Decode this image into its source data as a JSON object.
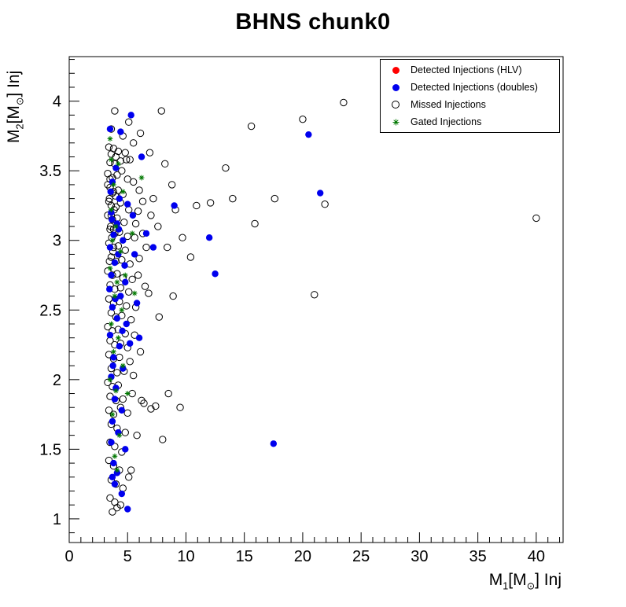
{
  "chart_data": {
    "type": "scatter",
    "title": "BHNS chunk0",
    "xlabel_text": "M1[M⊙] Inj",
    "ylabel_text": "M2[M⊙] Inj",
    "xlabel_segments": [
      {
        "t": "M"
      },
      {
        "t": "1",
        "sub": true
      },
      {
        "t": "[M"
      },
      {
        "t": "⊙",
        "sub": true
      },
      {
        "t": "] Inj"
      }
    ],
    "ylabel_segments": [
      {
        "t": "M"
      },
      {
        "t": "2",
        "sub": true
      },
      {
        "t": "[M"
      },
      {
        "t": "⊙",
        "sub": true
      },
      {
        "t": "] Inj"
      }
    ],
    "xlim": [
      0,
      42.3
    ],
    "ylim": [
      0.83,
      4.32
    ],
    "xticks": [
      0,
      5,
      10,
      15,
      20,
      25,
      30,
      35,
      40
    ],
    "yticks": [
      1,
      1.5,
      2,
      2.5,
      3,
      3.5,
      4
    ],
    "x_minor_step": 1,
    "y_minor_step": 0.1,
    "grid": false,
    "legend_position": "top-right",
    "series": [
      {
        "name": "Detected Injections (HLV)",
        "marker": "filled-circle",
        "color": "#ff0000",
        "points": []
      },
      {
        "name": "Detected Injections (doubles)",
        "marker": "filled-circle",
        "color": "#0000ee",
        "points": [
          [
            3.5,
            3.8
          ],
          [
            4.4,
            3.78
          ],
          [
            5.3,
            3.9
          ],
          [
            6.2,
            3.6
          ],
          [
            4.0,
            3.52
          ],
          [
            3.7,
            3.42
          ],
          [
            4.3,
            3.3
          ],
          [
            5.0,
            3.26
          ],
          [
            3.6,
            3.2
          ],
          [
            4.1,
            3.12
          ],
          [
            3.8,
            3.04
          ],
          [
            4.6,
            3.0
          ],
          [
            3.5,
            2.95
          ],
          [
            4.2,
            2.9
          ],
          [
            3.9,
            2.84
          ],
          [
            3.6,
            2.75
          ],
          [
            4.8,
            2.7
          ],
          [
            5.6,
            2.9
          ],
          [
            6.6,
            3.05
          ],
          [
            4.4,
            2.6
          ],
          [
            3.7,
            2.52
          ],
          [
            4.1,
            2.44
          ],
          [
            4.9,
            2.4
          ],
          [
            3.5,
            2.32
          ],
          [
            4.3,
            2.24
          ],
          [
            3.8,
            2.16
          ],
          [
            4.6,
            2.08
          ],
          [
            3.6,
            2.02
          ],
          [
            4.0,
            1.94
          ],
          [
            5.2,
            2.26
          ],
          [
            3.9,
            1.86
          ],
          [
            4.5,
            1.78
          ],
          [
            3.7,
            1.7
          ],
          [
            4.2,
            1.62
          ],
          [
            3.6,
            1.55
          ],
          [
            4.8,
            1.5
          ],
          [
            3.8,
            1.4
          ],
          [
            4.1,
            1.33
          ],
          [
            3.9,
            1.25
          ],
          [
            4.5,
            1.18
          ],
          [
            5.0,
            1.07
          ],
          [
            3.7,
            1.3
          ],
          [
            5.8,
            2.55
          ],
          [
            6.0,
            2.3
          ],
          [
            7.2,
            2.95
          ],
          [
            12.0,
            3.02
          ],
          [
            12.5,
            2.76
          ],
          [
            20.5,
            3.76
          ],
          [
            21.5,
            3.34
          ],
          [
            17.5,
            1.54
          ],
          [
            9.0,
            3.25
          ],
          [
            3.55,
            3.35
          ],
          [
            3.65,
            3.15
          ],
          [
            4.25,
            3.08
          ],
          [
            4.75,
            2.82
          ],
          [
            5.45,
            3.18
          ],
          [
            3.45,
            2.65
          ],
          [
            3.95,
            2.58
          ],
          [
            4.55,
            2.35
          ],
          [
            3.75,
            2.1
          ]
        ]
      },
      {
        "name": "Missed Injections",
        "marker": "open-circle",
        "color": "#000000",
        "points": [
          [
            3.4,
            3.67
          ],
          [
            3.6,
            3.62
          ],
          [
            3.8,
            3.66
          ],
          [
            4.0,
            3.6
          ],
          [
            4.2,
            3.64
          ],
          [
            3.5,
            3.56
          ],
          [
            3.9,
            3.55
          ],
          [
            4.4,
            3.57
          ],
          [
            4.8,
            3.63
          ],
          [
            5.2,
            3.58
          ],
          [
            3.3,
            3.48
          ],
          [
            3.7,
            3.45
          ],
          [
            4.1,
            3.47
          ],
          [
            4.5,
            3.5
          ],
          [
            5.0,
            3.44
          ],
          [
            5.5,
            3.42
          ],
          [
            3.5,
            3.38
          ],
          [
            3.8,
            3.35
          ],
          [
            4.2,
            3.36
          ],
          [
            4.6,
            3.33
          ],
          [
            3.4,
            3.28
          ],
          [
            3.6,
            3.25
          ],
          [
            4.0,
            3.24
          ],
          [
            4.4,
            3.27
          ],
          [
            5.1,
            3.22
          ],
          [
            5.9,
            3.21
          ],
          [
            3.3,
            3.18
          ],
          [
            3.7,
            3.15
          ],
          [
            4.1,
            3.16
          ],
          [
            4.7,
            3.13
          ],
          [
            3.5,
            3.08
          ],
          [
            3.9,
            3.05
          ],
          [
            4.3,
            3.06
          ],
          [
            5.0,
            3.03
          ],
          [
            5.6,
            3.02
          ],
          [
            6.3,
            3.05
          ],
          [
            3.4,
            2.98
          ],
          [
            3.8,
            2.95
          ],
          [
            4.2,
            2.96
          ],
          [
            4.8,
            2.93
          ],
          [
            3.6,
            2.88
          ],
          [
            4.0,
            2.85
          ],
          [
            4.5,
            2.86
          ],
          [
            5.2,
            2.83
          ],
          [
            6.0,
            2.87
          ],
          [
            3.3,
            2.78
          ],
          [
            3.7,
            2.75
          ],
          [
            4.1,
            2.76
          ],
          [
            4.6,
            2.73
          ],
          [
            5.4,
            2.72
          ],
          [
            3.5,
            2.68
          ],
          [
            3.9,
            2.65
          ],
          [
            4.4,
            2.66
          ],
          [
            5.1,
            2.63
          ],
          [
            6.5,
            2.67
          ],
          [
            3.4,
            2.58
          ],
          [
            3.8,
            2.55
          ],
          [
            4.3,
            2.56
          ],
          [
            4.9,
            2.53
          ],
          [
            5.7,
            2.52
          ],
          [
            3.6,
            2.48
          ],
          [
            4.0,
            2.45
          ],
          [
            4.5,
            2.46
          ],
          [
            5.3,
            2.43
          ],
          [
            3.3,
            2.38
          ],
          [
            3.7,
            2.35
          ],
          [
            4.2,
            2.36
          ],
          [
            4.8,
            2.33
          ],
          [
            5.6,
            2.32
          ],
          [
            6.8,
            2.62
          ],
          [
            3.5,
            2.28
          ],
          [
            3.9,
            2.25
          ],
          [
            4.4,
            2.26
          ],
          [
            5.0,
            2.23
          ],
          [
            3.4,
            2.18
          ],
          [
            3.8,
            2.15
          ],
          [
            4.3,
            2.16
          ],
          [
            5.2,
            2.13
          ],
          [
            3.6,
            2.08
          ],
          [
            4.1,
            2.05
          ],
          [
            4.7,
            2.06
          ],
          [
            5.5,
            2.03
          ],
          [
            3.3,
            1.98
          ],
          [
            3.7,
            1.95
          ],
          [
            4.2,
            1.96
          ],
          [
            3.5,
            1.88
          ],
          [
            4.0,
            1.85
          ],
          [
            4.6,
            1.86
          ],
          [
            5.4,
            1.9
          ],
          [
            6.2,
            1.85
          ],
          [
            3.4,
            1.78
          ],
          [
            3.8,
            1.75
          ],
          [
            4.4,
            1.8
          ],
          [
            5.0,
            1.76
          ],
          [
            7.0,
            1.79
          ],
          [
            3.6,
            1.68
          ],
          [
            4.1,
            1.65
          ],
          [
            4.8,
            1.62
          ],
          [
            8.0,
            1.57
          ],
          [
            3.5,
            1.55
          ],
          [
            3.9,
            1.52
          ],
          [
            4.5,
            1.48
          ],
          [
            3.4,
            1.42
          ],
          [
            3.8,
            1.38
          ],
          [
            4.3,
            1.35
          ],
          [
            5.1,
            1.3
          ],
          [
            3.6,
            1.28
          ],
          [
            4.0,
            1.25
          ],
          [
            4.6,
            1.22
          ],
          [
            3.5,
            1.15
          ],
          [
            3.9,
            1.12
          ],
          [
            4.4,
            1.1
          ],
          [
            3.7,
            1.05
          ],
          [
            4.1,
            1.08
          ],
          [
            5.3,
            1.35
          ],
          [
            5.8,
            1.6
          ],
          [
            6.4,
            1.83
          ],
          [
            7.4,
            1.81
          ],
          [
            3.3,
            3.4
          ],
          [
            3.45,
            3.3
          ],
          [
            3.9,
            3.93
          ],
          [
            5.1,
            3.85
          ],
          [
            5.5,
            3.7
          ],
          [
            6.1,
            3.77
          ],
          [
            7.9,
            3.93
          ],
          [
            4.6,
            3.75
          ],
          [
            3.6,
            3.8
          ],
          [
            4.9,
            3.58
          ],
          [
            6.9,
            3.63
          ],
          [
            8.2,
            3.55
          ],
          [
            6.0,
            3.36
          ],
          [
            7.2,
            3.3
          ],
          [
            8.8,
            3.4
          ],
          [
            9.1,
            3.22
          ],
          [
            7.6,
            3.1
          ],
          [
            8.4,
            2.95
          ],
          [
            9.7,
            3.02
          ],
          [
            10.4,
            2.88
          ],
          [
            6.6,
            2.95
          ],
          [
            7.0,
            3.18
          ],
          [
            10.9,
            3.25
          ],
          [
            13.4,
            3.52
          ],
          [
            15.6,
            3.82
          ],
          [
            20.0,
            3.87
          ],
          [
            23.5,
            3.99
          ],
          [
            17.6,
            3.3
          ],
          [
            21.9,
            3.26
          ],
          [
            15.9,
            3.12
          ],
          [
            40.0,
            3.16
          ],
          [
            21.0,
            2.61
          ],
          [
            12.1,
            3.27
          ],
          [
            14.0,
            3.3
          ],
          [
            8.9,
            2.6
          ],
          [
            9.5,
            1.8
          ],
          [
            8.5,
            1.9
          ],
          [
            7.7,
            2.45
          ],
          [
            6.1,
            2.2
          ],
          [
            5.9,
            2.75
          ],
          [
            6.3,
            3.28
          ],
          [
            5.7,
            3.12
          ],
          [
            3.55,
            3.1
          ],
          [
            3.65,
            3.02
          ],
          [
            3.75,
            2.92
          ],
          [
            3.45,
            2.85
          ],
          [
            3.85,
            3.22
          ],
          [
            3.95,
            3.32
          ],
          [
            3.5,
            3.44
          ],
          [
            3.6,
            3.18
          ],
          [
            3.7,
            3.34
          ],
          [
            3.8,
            3.08
          ]
        ]
      },
      {
        "name": "Gated Injections",
        "marker": "star",
        "color": "#007700",
        "points": [
          [
            3.5,
            3.73
          ],
          [
            4.2,
            3.55
          ],
          [
            3.8,
            3.4
          ],
          [
            4.6,
            3.35
          ],
          [
            3.6,
            3.22
          ],
          [
            4.0,
            3.1
          ],
          [
            3.7,
            3.0
          ],
          [
            4.4,
            2.92
          ],
          [
            3.5,
            2.8
          ],
          [
            4.1,
            2.7
          ],
          [
            3.9,
            2.6
          ],
          [
            4.5,
            2.5
          ],
          [
            3.6,
            2.4
          ],
          [
            4.2,
            2.3
          ],
          [
            3.8,
            2.2
          ],
          [
            4.6,
            2.1
          ],
          [
            3.5,
            2.0
          ],
          [
            4.0,
            1.92
          ],
          [
            4.8,
            2.75
          ],
          [
            5.4,
            3.05
          ],
          [
            3.7,
            1.75
          ],
          [
            4.3,
            1.6
          ],
          [
            3.9,
            1.45
          ],
          [
            4.1,
            1.35
          ],
          [
            5.0,
            1.9
          ],
          [
            5.6,
            2.62
          ],
          [
            6.2,
            3.45
          ],
          [
            3.6,
            3.58
          ]
        ]
      }
    ]
  }
}
